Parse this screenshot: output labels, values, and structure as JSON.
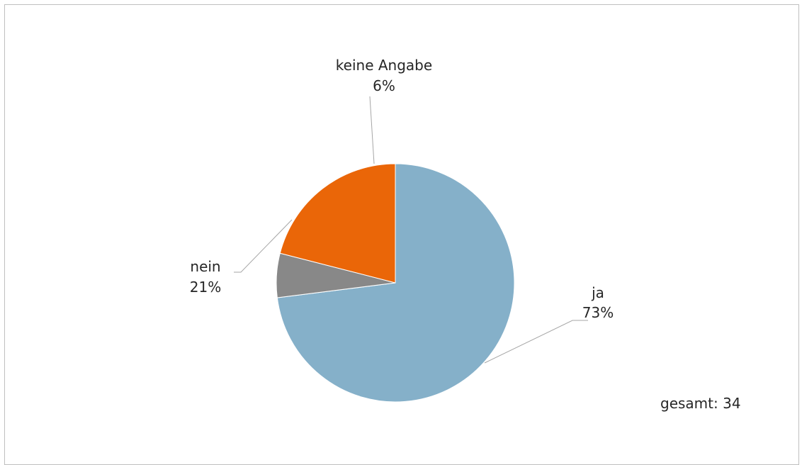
{
  "chart_data": {
    "type": "pie",
    "title": "",
    "slices": [
      {
        "label": "ja",
        "value": 73,
        "value_label": "73%",
        "color": "#85b0c9"
      },
      {
        "label": "keine Angabe",
        "value": 6,
        "value_label": "6%",
        "color": "#888888"
      },
      {
        "label": "nein",
        "value": 21,
        "value_label": "21%",
        "color": "#ea6608"
      }
    ],
    "total_label": "gesamt: 34",
    "legend": "none"
  }
}
